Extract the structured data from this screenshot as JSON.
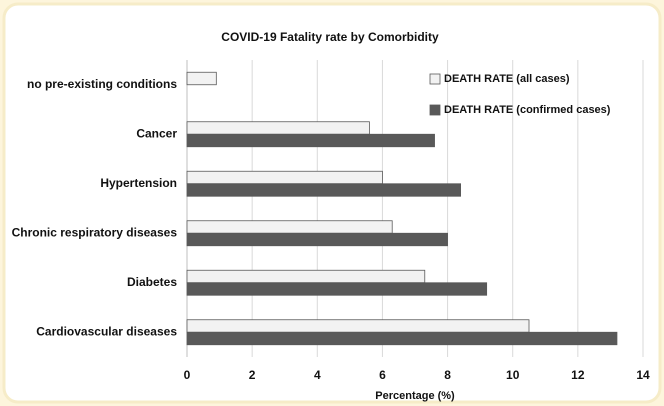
{
  "chart_data": {
    "type": "hbar",
    "title": "COVID-19 Fatality rate by Comorbidity",
    "xlabel": "Percentage (%)",
    "categories": [
      "no pre-existing conditions",
      "Cancer",
      "Hypertension",
      "Chronic respiratory diseases",
      "Diabetes",
      "Cardiovascular diseases"
    ],
    "series": [
      {
        "name": "DEATH RATE (all cases)",
        "color": "#f2f2f2",
        "values": [
          0.9,
          5.6,
          6.0,
          6.3,
          7.3,
          10.5
        ]
      },
      {
        "name": "DEATH RATE (confirmed cases)",
        "color": "#595959",
        "values": [
          null,
          7.6,
          8.4,
          8.0,
          9.2,
          13.2
        ]
      }
    ],
    "xlim": [
      0,
      14
    ],
    "xticks": [
      0,
      2,
      4,
      6,
      8,
      10,
      12,
      14
    ],
    "grid": true,
    "legend": "upper right"
  }
}
